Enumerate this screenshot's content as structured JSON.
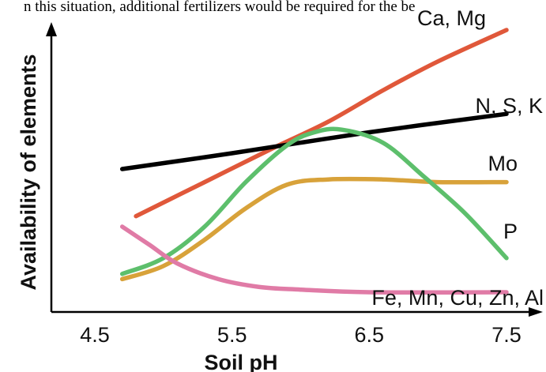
{
  "header_text": "n this situation, additional fertilizers would be required for the be",
  "chart_data": {
    "type": "line",
    "xlabel": "Soil pH",
    "ylabel": "Availability of elements",
    "xlim": [
      4.5,
      7.5
    ],
    "ylim": [
      0,
      100
    ],
    "x_ticks": [
      "4.5",
      "5.5",
      "6.5",
      "7.5"
    ],
    "y_ticks": [],
    "grid": false,
    "legend": "inline labels at right end of each line",
    "series": [
      {
        "name": "Ca, Mg",
        "color": "#e0583a",
        "points": [
          [
            4.8,
            29
          ],
          [
            5.3,
            42
          ],
          [
            5.8,
            55
          ],
          [
            6.2,
            65
          ],
          [
            6.6,
            77
          ],
          [
            7.0,
            88
          ],
          [
            7.5,
            100
          ]
        ]
      },
      {
        "name": "N, S, K",
        "color": "#000000",
        "points": [
          [
            4.7,
            47
          ],
          [
            5.5,
            53
          ],
          [
            6.5,
            61
          ],
          [
            7.5,
            68
          ]
        ]
      },
      {
        "name": "Mo",
        "color": "#d8a23a",
        "points": [
          [
            4.7,
            5
          ],
          [
            5.0,
            10
          ],
          [
            5.3,
            20
          ],
          [
            5.6,
            32
          ],
          [
            5.9,
            41
          ],
          [
            6.2,
            43
          ],
          [
            6.6,
            43
          ],
          [
            7.0,
            42
          ],
          [
            7.5,
            42
          ]
        ]
      },
      {
        "name": "P",
        "color": "#5dbf6c",
        "points": [
          [
            4.7,
            7
          ],
          [
            5.0,
            13
          ],
          [
            5.3,
            25
          ],
          [
            5.6,
            42
          ],
          [
            5.9,
            56
          ],
          [
            6.1,
            61
          ],
          [
            6.3,
            62
          ],
          [
            6.6,
            57
          ],
          [
            6.9,
            44
          ],
          [
            7.2,
            30
          ],
          [
            7.5,
            13
          ]
        ]
      },
      {
        "name": "Fe, Mn, Cu, Zn, Al",
        "color": "#e07ba6",
        "points": [
          [
            4.7,
            25
          ],
          [
            4.9,
            18
          ],
          [
            5.1,
            11
          ],
          [
            5.4,
            5
          ],
          [
            5.7,
            2
          ],
          [
            6.0,
            1
          ],
          [
            6.5,
            0
          ],
          [
            7.5,
            0
          ]
        ]
      }
    ]
  }
}
